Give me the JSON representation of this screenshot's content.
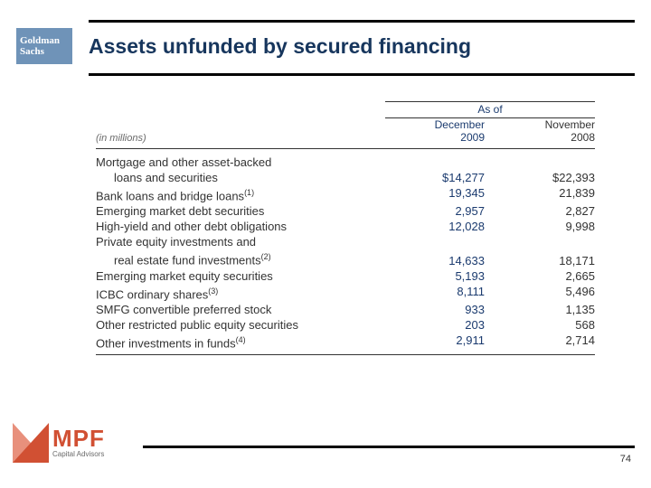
{
  "colors": {
    "title": "#17365d",
    "accent_col": "#1a3a6e",
    "body_text": "#333333",
    "gs_logo_bg": "#6f93b8",
    "mpf_primary": "#d15033",
    "mpf_secondary": "#e8907c",
    "rule": "#000000"
  },
  "gs_logo": {
    "line1": "Goldman",
    "line2": "Sachs"
  },
  "title": "Assets unfunded by secured financing",
  "table": {
    "asof_label": "As of",
    "units_label": "(in millions)",
    "columns": [
      {
        "month": "December",
        "year": "2009"
      },
      {
        "month": "November",
        "year": "2008"
      }
    ],
    "rows": [
      {
        "label_line1": "Mortgage and other asset-backed",
        "label_line2": "loans and securities",
        "v1": "$14,277",
        "v2": "$22,393"
      },
      {
        "label_line1": "Bank loans and bridge loans",
        "sup": "(1)",
        "v1": "19,345",
        "v2": "21,839"
      },
      {
        "label_line1": "Emerging market debt securities",
        "v1": "2,957",
        "v2": "2,827"
      },
      {
        "label_line1": "High-yield and other debt obligations",
        "v1": "12,028",
        "v2": "9,998"
      },
      {
        "label_line1": "Private equity investments and",
        "label_line2": "real estate fund investments",
        "sup": "(2)",
        "v1": "14,633",
        "v2": "18,171"
      },
      {
        "label_line1": "Emerging market equity securities",
        "v1": "5,193",
        "v2": "2,665"
      },
      {
        "label_line1": "ICBC ordinary shares",
        "sup": "(3)",
        "v1": "8,111",
        "v2": "5,496"
      },
      {
        "label_line1": "SMFG convertible preferred stock",
        "v1": "933",
        "v2": "1,135"
      },
      {
        "label_line1": "Other restricted public equity securities",
        "v1": "203",
        "v2": "568"
      },
      {
        "label_line1": "Other investments in funds",
        "sup": "(4)",
        "v1": "2,911",
        "v2": "2,714"
      }
    ]
  },
  "mpf": {
    "text": "MPF",
    "sub": "Capital Advisors"
  },
  "page_number": "74"
}
